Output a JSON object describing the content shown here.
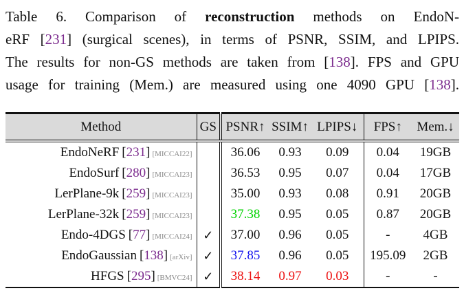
{
  "colors": {
    "purple": "#7C2C8E",
    "green": "#00D300",
    "blue": "#1212EE",
    "red": "#EC1212",
    "venue-gray": "#8A8A8A",
    "header-bg": "#DADADA"
  },
  "caption": {
    "lines": [
      {
        "segments": [
          {
            "text": "Table 6. Comparison of "
          },
          {
            "text": "reconstruction",
            "style": "bold"
          },
          {
            "text": " methods on EndoN-"
          }
        ]
      },
      {
        "segments": [
          {
            "text": "eRF ["
          },
          {
            "text": "231",
            "style": "cite"
          },
          {
            "text": "] (surgical scenes), in terms of PSNR, SSIM, and LPIPS."
          }
        ]
      },
      {
        "segments": [
          {
            "text": "The results for non-GS methods are taken from ["
          },
          {
            "text": "138",
            "style": "cite"
          },
          {
            "text": "]. FPS and GPU"
          }
        ]
      },
      {
        "segments": [
          {
            "text": "usage for training (Mem.) are measured using one 4090 GPU ["
          },
          {
            "text": "138",
            "style": "cite"
          },
          {
            "text": "]."
          }
        ]
      }
    ]
  },
  "table": {
    "headers": {
      "method": "Method",
      "gs": "GS",
      "psnr": "PSNR↑",
      "ssim": "SSIM↑",
      "lpips": "LPIPS↓",
      "fps": "FPS↑",
      "mem": "Mem.↓"
    },
    "rows": [
      {
        "name": "EndoNeRF",
        "cite": "231",
        "venue": "[MICCAI22]",
        "gs": "",
        "psnr": "36.06",
        "ssim": "0.93",
        "lpips": "0.09",
        "fps": "0.04",
        "mem": "19GB"
      },
      {
        "name": "EndoSurf",
        "cite": "280",
        "venue": "[MICCAI23]",
        "gs": "",
        "psnr": "36.53",
        "ssim": "0.95",
        "lpips": "0.07",
        "fps": "0.04",
        "mem": "17GB"
      },
      {
        "name": "LerPlane-9k",
        "cite": "259",
        "venue": "[MICCAI23]",
        "gs": "",
        "psnr": "35.00",
        "ssim": "0.93",
        "lpips": "0.08",
        "fps": "0.91",
        "mem": "20GB"
      },
      {
        "name": "LerPlane-32k",
        "cite": "259",
        "venue": "[MICCAI23]",
        "gs": "",
        "psnr": "37.38",
        "ssim": "0.95",
        "lpips": "0.05",
        "fps": "0.87",
        "mem": "20GB"
      },
      {
        "name": "Endo-4DGS",
        "cite": "77",
        "venue": "[MICCAI24]",
        "gs": "✓",
        "psnr": "37.00",
        "ssim": "0.96",
        "lpips": "0.05",
        "fps": "-",
        "mem": "4GB"
      },
      {
        "name": "EndoGaussian",
        "cite": "138",
        "venue": "[arXiv]",
        "gs": "✓",
        "psnr": "37.85",
        "ssim": "0.96",
        "lpips": "0.05",
        "fps": "195.09",
        "mem": "2GB"
      },
      {
        "name": "HFGS",
        "cite": "295",
        "venue": "[BMVC24]",
        "gs": "✓",
        "psnr": "38.14",
        "ssim": "0.97",
        "lpips": "0.03",
        "fps": "-",
        "mem": "-"
      }
    ]
  },
  "misc": {
    "lb": "[",
    "rb": "]"
  }
}
